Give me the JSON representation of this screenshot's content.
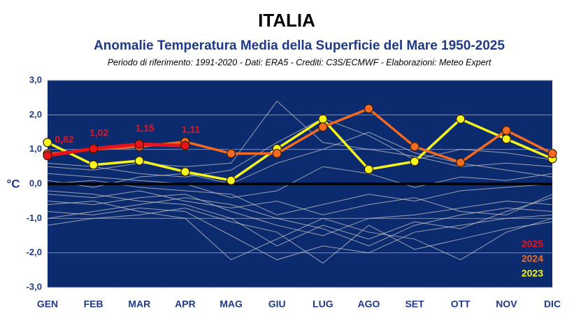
{
  "chart_data": {
    "type": "line",
    "title": "ITALIA",
    "subtitle": "Anomalie Temperatura Media della Superficie del Mare 1950-2025",
    "caption": "Periodo di riferimento: 1991-2020 - Dati: ERA5 - Crediti: C3S/ECMWF - Elaborazioni: Meteo Expert",
    "y_label": "°C",
    "categories": [
      "GEN",
      "FEB",
      "MAR",
      "APR",
      "MAG",
      "GIU",
      "LUG",
      "AGO",
      "SET",
      "OTT",
      "NOV",
      "DIC"
    ],
    "ylim": [
      -3,
      3
    ],
    "yticks": [
      {
        "value": -3,
        "label": "-3,0"
      },
      {
        "value": -2,
        "label": "-2,0"
      },
      {
        "value": -1,
        "label": "-1,0"
      },
      {
        "value": 0,
        "label": "0,0"
      },
      {
        "value": 1,
        "label": "1,0"
      },
      {
        "value": 2,
        "label": "2,0"
      },
      {
        "value": 3,
        "label": "3,0"
      }
    ],
    "grid": true,
    "legend": "lower right",
    "series": [
      {
        "name": "2025",
        "color": "#e8141c",
        "values": [
          0.82,
          1.02,
          1.15,
          1.11,
          null,
          null,
          null,
          null,
          null,
          null,
          null,
          null
        ],
        "value_labels": [
          "0,82",
          "1,02",
          "1,15",
          "1,11",
          null,
          null,
          null,
          null,
          null,
          null,
          null,
          null
        ]
      },
      {
        "name": "2024",
        "color": "#f26b21",
        "values": [
          0.87,
          1.0,
          1.08,
          1.22,
          0.88,
          0.88,
          1.65,
          2.18,
          1.08,
          0.62,
          1.55,
          0.88
        ]
      },
      {
        "name": "2023",
        "color": "#f5f51e",
        "values": [
          1.2,
          0.55,
          0.67,
          0.35,
          0.1,
          1.02,
          1.88,
          0.42,
          0.65,
          1.88,
          1.3,
          0.73
        ]
      },
      {
        "color": "#c8c8c8",
        "values": [
          -0.5,
          -0.6,
          -0.4,
          -0.3,
          -0.8,
          -1.2,
          -1.5,
          -1.0,
          -0.9,
          -0.7,
          -0.5,
          -0.6
        ]
      },
      {
        "color": "#c8c8c8",
        "values": [
          -0.2,
          -0.3,
          -0.5,
          -0.6,
          -1.0,
          -1.8,
          -1.2,
          -1.6,
          -1.1,
          -1.3,
          -0.8,
          -0.4
        ]
      },
      {
        "color": "#c8c8c8",
        "values": [
          0.3,
          0.2,
          0.1,
          0.0,
          -0.4,
          -0.2,
          0.5,
          0.3,
          -0.1,
          0.2,
          0.1,
          0.3
        ]
      },
      {
        "color": "#c8c8c8",
        "values": [
          -0.8,
          -0.9,
          -0.7,
          -0.8,
          -1.5,
          -2.2,
          -1.8,
          -2.0,
          -1.4,
          -1.2,
          -1.0,
          -0.9
        ]
      },
      {
        "color": "#c8c8c8",
        "values": [
          0.5,
          0.4,
          0.6,
          0.5,
          0.6,
          2.4,
          1.2,
          1.0,
          0.8,
          0.5,
          0.6,
          0.5
        ]
      },
      {
        "color": "#c8c8c8",
        "values": [
          -1.2,
          -1.0,
          -0.9,
          -0.7,
          -1.1,
          -1.4,
          -2.3,
          -1.2,
          -1.9,
          -1.6,
          -1.3,
          -1.1
        ]
      },
      {
        "color": "#c8c8c8",
        "values": [
          0.1,
          -0.1,
          0.2,
          0.3,
          0.0,
          0.6,
          1.0,
          1.5,
          0.9,
          0.6,
          0.4,
          0.2
        ]
      },
      {
        "color": "#c8c8c8",
        "values": [
          -0.3,
          -0.4,
          -0.2,
          -0.5,
          -0.7,
          -0.5,
          -0.9,
          -0.6,
          -0.4,
          -0.8,
          -0.9,
          -0.3
        ]
      },
      {
        "color": "#c8c8c8",
        "values": [
          0.6,
          0.5,
          0.3,
          0.2,
          0.4,
          1.2,
          1.9,
          1.4,
          0.7,
          1.0,
          0.9,
          0.7
        ]
      },
      {
        "color": "#c8c8c8",
        "values": [
          -0.6,
          -0.5,
          -0.8,
          -1.0,
          -2.2,
          -1.6,
          -1.0,
          -1.4,
          -1.6,
          -2.2,
          -1.4,
          -1.0
        ]
      },
      {
        "color": "#c8c8c8",
        "values": [
          0.0,
          0.1,
          -0.1,
          -0.2,
          -0.3,
          -0.9,
          -0.6,
          -0.3,
          -0.5,
          -0.2,
          -0.1,
          0.0
        ]
      },
      {
        "color": "#c8c8c8",
        "values": [
          -1.0,
          -0.8,
          -0.6,
          -0.4,
          -0.6,
          -1.0,
          -1.3,
          -1.8,
          -1.2,
          -0.9,
          -0.7,
          -0.8
        ]
      }
    ]
  }
}
